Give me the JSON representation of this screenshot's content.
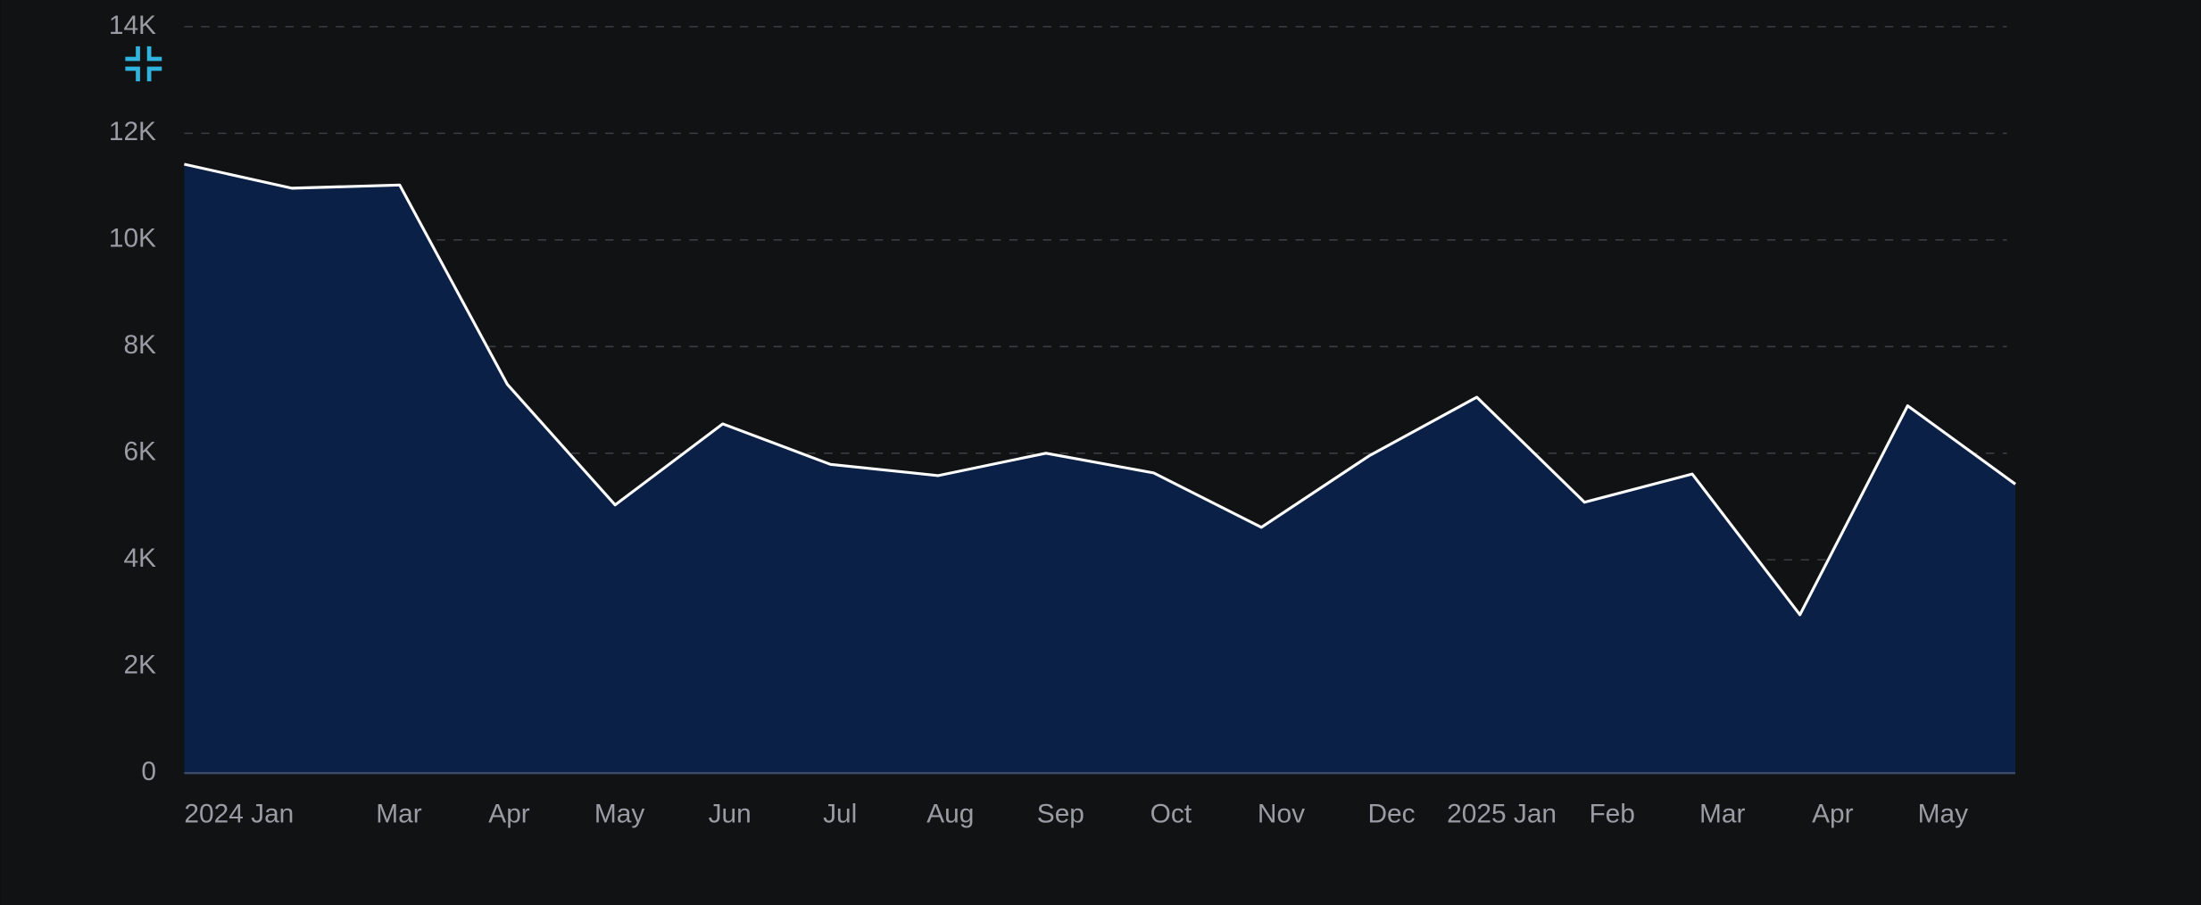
{
  "chart_data": {
    "type": "area",
    "categories": [
      null,
      null,
      null,
      null,
      null,
      null,
      null,
      null,
      null,
      null,
      null,
      null,
      null,
      null,
      null,
      null,
      null,
      null
    ],
    "values": [
      11420,
      10970,
      11030,
      7290,
      5030,
      6550,
      5790,
      5580,
      6000,
      5630,
      4610,
      5950,
      7050,
      5080,
      5610,
      2970,
      6890,
      5420
    ],
    "color": "#0a2046",
    "line_color": "#ffffff",
    "x_axis_labels": [
      "2024 Jan",
      "Mar",
      "Apr",
      "May",
      "Jun",
      "Jul",
      "Aug",
      "Sep",
      "Oct",
      "Nov",
      "Dec",
      "2025 Jan",
      "Feb",
      "Mar",
      "Apr",
      "May"
    ],
    "ylim": [
      0,
      14000
    ],
    "yticks": [
      0,
      {
        "value": 2000,
        "label": "2K"
      },
      {
        "value": 4000,
        "label": "4K"
      },
      {
        "value": 6000,
        "label": "6K"
      },
      {
        "value": 8000,
        "label": "8K"
      },
      {
        "value": 10000,
        "label": "10K"
      },
      {
        "value": 12000,
        "label": "12K"
      },
      {
        "value": 14000,
        "label": "14K"
      }
    ],
    "grid": true
  }
}
